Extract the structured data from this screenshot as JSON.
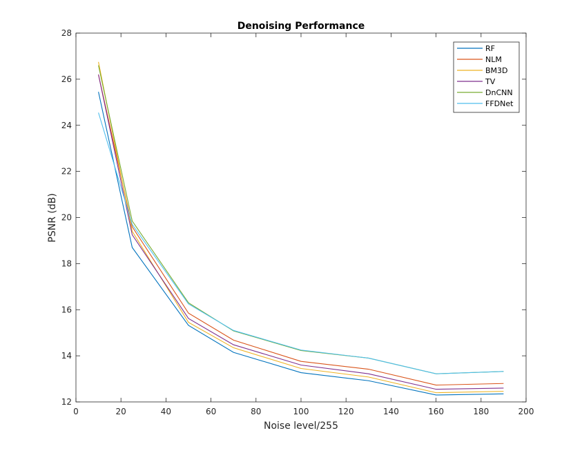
{
  "chart_data": {
    "type": "line",
    "title": "Denoising Performance",
    "xlabel": "Noise level/255",
    "ylabel": "PSNR (dB)",
    "xlim": [
      0,
      200
    ],
    "ylim": [
      12,
      28
    ],
    "xticks": [
      0,
      20,
      40,
      60,
      80,
      100,
      120,
      140,
      160,
      180,
      200
    ],
    "yticks": [
      12,
      14,
      16,
      18,
      20,
      22,
      24,
      26,
      28
    ],
    "grid": false,
    "legend_position": "top-right",
    "x": [
      10,
      25,
      50,
      70,
      100,
      130,
      160,
      190
    ],
    "series": [
      {
        "name": "RF",
        "color": "#0072BD",
        "values": [
          25.45,
          18.7,
          15.32,
          14.15,
          13.27,
          12.92,
          12.3,
          12.35
        ]
      },
      {
        "name": "NLM",
        "color": "#D95319",
        "values": [
          26.2,
          19.6,
          15.85,
          14.68,
          13.76,
          13.42,
          12.73,
          12.8
        ]
      },
      {
        "name": "BM3D",
        "color": "#EDB120",
        "values": [
          26.75,
          19.4,
          15.45,
          14.35,
          13.45,
          13.08,
          12.4,
          12.46
        ]
      },
      {
        "name": "TV",
        "color": "#7E2F8E",
        "values": [
          26.2,
          19.25,
          15.62,
          14.48,
          13.6,
          13.22,
          12.55,
          12.6
        ]
      },
      {
        "name": "DnCNN",
        "color": "#77AC30",
        "values": [
          26.6,
          19.85,
          16.3,
          15.08,
          14.23,
          13.9,
          13.22,
          13.32
        ]
      },
      {
        "name": "FFDNet",
        "color": "#4DBEEE",
        "values": [
          24.55,
          19.7,
          16.25,
          15.1,
          14.25,
          13.9,
          13.22,
          13.32
        ]
      }
    ]
  }
}
